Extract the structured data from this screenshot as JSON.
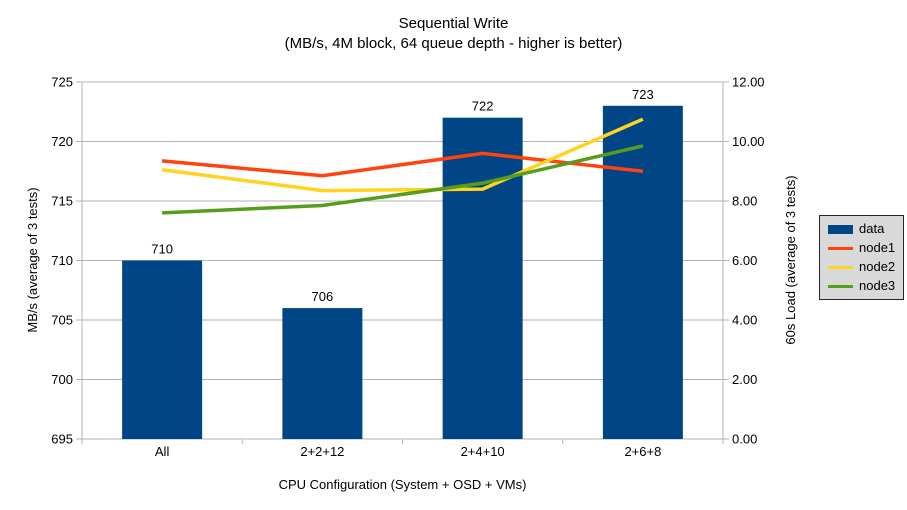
{
  "chart_data": {
    "type": "bar+line",
    "title": "Sequential Write",
    "subtitle": "(MB/s, 4M block, 64 queue depth - higher is better)",
    "categories": [
      "All",
      "2+2+12",
      "2+4+10",
      "2+6+8"
    ],
    "xlabel": "CPU Configuration (System + OSD + VMs)",
    "left_axis": {
      "label": "MB/s (average of 3 tests)",
      "min": 695,
      "max": 725,
      "step": 5
    },
    "right_axis": {
      "label": "60s Load (average of 3 tests)",
      "min": 0,
      "max": 12,
      "step": 2,
      "decimals": 2
    },
    "series": [
      {
        "name": "data",
        "type": "bar",
        "axis": "left",
        "color": "#004586",
        "values": [
          710,
          706,
          722,
          723
        ]
      },
      {
        "name": "node1",
        "type": "line",
        "axis": "right",
        "color": "#ff420e",
        "values": [
          9.35,
          8.85,
          9.6,
          9.0
        ]
      },
      {
        "name": "node2",
        "type": "line",
        "axis": "right",
        "color": "#ffd320",
        "values": [
          9.05,
          8.35,
          8.4,
          10.75
        ]
      },
      {
        "name": "node3",
        "type": "line",
        "axis": "right",
        "color": "#579d1c",
        "values": [
          7.6,
          7.85,
          8.6,
          9.85
        ]
      }
    ],
    "grid": true,
    "legend_position": "right",
    "colors": {
      "grid": "#b3b3b3",
      "axis": "#b3b3b3",
      "text": "#000000",
      "background": "#ffffff",
      "legend_bg": "#d9d9d9",
      "legend_border": "#262626"
    }
  }
}
